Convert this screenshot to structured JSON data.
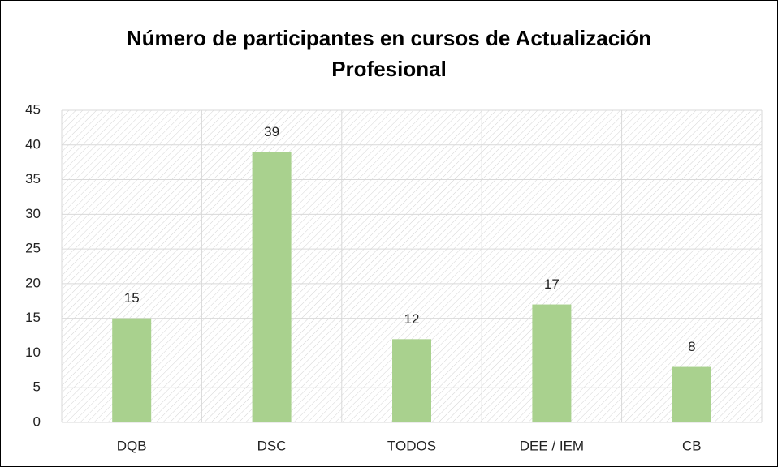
{
  "chart_data": {
    "type": "bar",
    "title": "Número de participantes en cursos de Actualización Profesional",
    "categories": [
      "DQB",
      "DSC",
      "TODOS",
      "DEE / IEM",
      "CB"
    ],
    "values": [
      15,
      39,
      12,
      17,
      8
    ],
    "color": "#a9d18e",
    "ylim": [
      0,
      45
    ],
    "yticks": [
      0,
      5,
      10,
      15,
      20,
      25,
      30,
      35,
      40,
      45
    ],
    "grid": true
  }
}
